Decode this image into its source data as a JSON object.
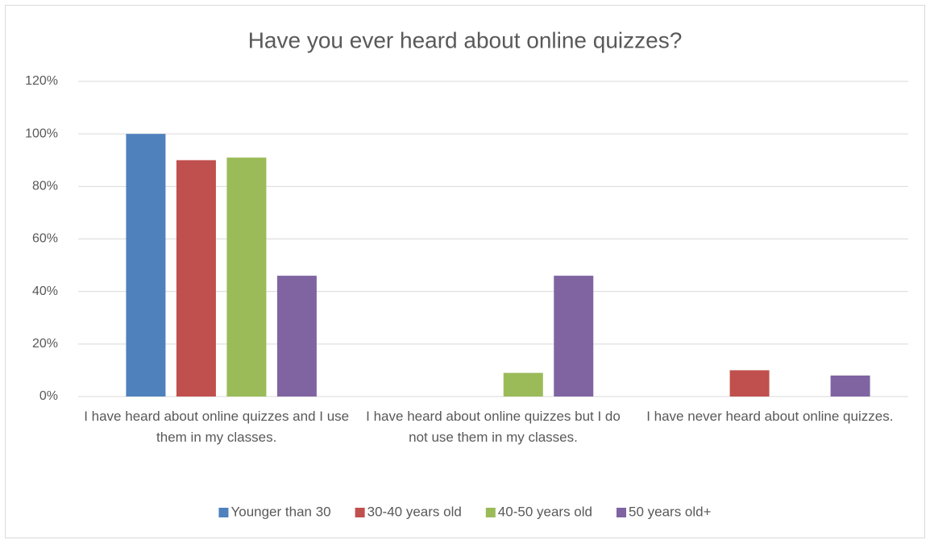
{
  "chart_data": {
    "type": "bar",
    "title": "Have you ever heard  about online quizzes?",
    "categories": [
      "I have heard about online quizzes and I use them in my classes.",
      "I have heard about online quizzes but I do not use them in my classes.",
      "I have never heard about online quizzes."
    ],
    "series": [
      {
        "name": "Younger than 30",
        "color": "#4f81bd",
        "values": [
          100,
          0,
          0
        ]
      },
      {
        "name": "30-40 years old",
        "color": "#c0504d",
        "values": [
          90,
          0,
          10
        ]
      },
      {
        "name": "40-50 years old",
        "color": "#9bbb59",
        "values": [
          91,
          9,
          0
        ]
      },
      {
        "name": "50 years old+",
        "color": "#8064a2",
        "values": [
          46,
          46,
          8
        ]
      }
    ],
    "ylim": [
      0,
      120
    ],
    "yticks": [
      {
        "value": 0,
        "label": "0%"
      },
      {
        "value": 20,
        "label": "20%"
      },
      {
        "value": 40,
        "label": "40%"
      },
      {
        "value": 60,
        "label": "60%"
      },
      {
        "value": 80,
        "label": "80%"
      },
      {
        "value": 100,
        "label": "100%"
      },
      {
        "value": 120,
        "label": "120%"
      }
    ],
    "grid": true,
    "legend": "bottom"
  }
}
